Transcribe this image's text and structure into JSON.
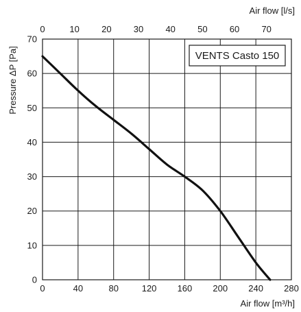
{
  "chart_data": {
    "type": "line",
    "title": "",
    "legend_text": "VENTS Casto 150",
    "legend_position": "top-right",
    "grid": true,
    "xlabel": "Air flow [m³/h]",
    "ylabel": "Pressure ΔP [Pa]",
    "x2label": "Air flow [l/s]",
    "xlim": [
      0,
      280
    ],
    "ylim": [
      0,
      70
    ],
    "x2lim": [
      0,
      77.78
    ],
    "x_ticks": [
      0,
      40,
      80,
      120,
      160,
      200,
      240,
      280
    ],
    "y_ticks": [
      0,
      10,
      20,
      30,
      40,
      50,
      60,
      70
    ],
    "x2_ticks": [
      0,
      10,
      20,
      30,
      40,
      50,
      60,
      70
    ],
    "series": [
      {
        "color": "#111111",
        "x": [
          0,
          20,
          40,
          60,
          80,
          100,
          120,
          140,
          160,
          180,
          200,
          220,
          240,
          256
        ],
        "y": [
          65,
          60,
          55,
          50.5,
          46.5,
          42.5,
          38,
          33.5,
          30,
          26,
          20,
          12.5,
          5,
          0
        ]
      }
    ]
  }
}
